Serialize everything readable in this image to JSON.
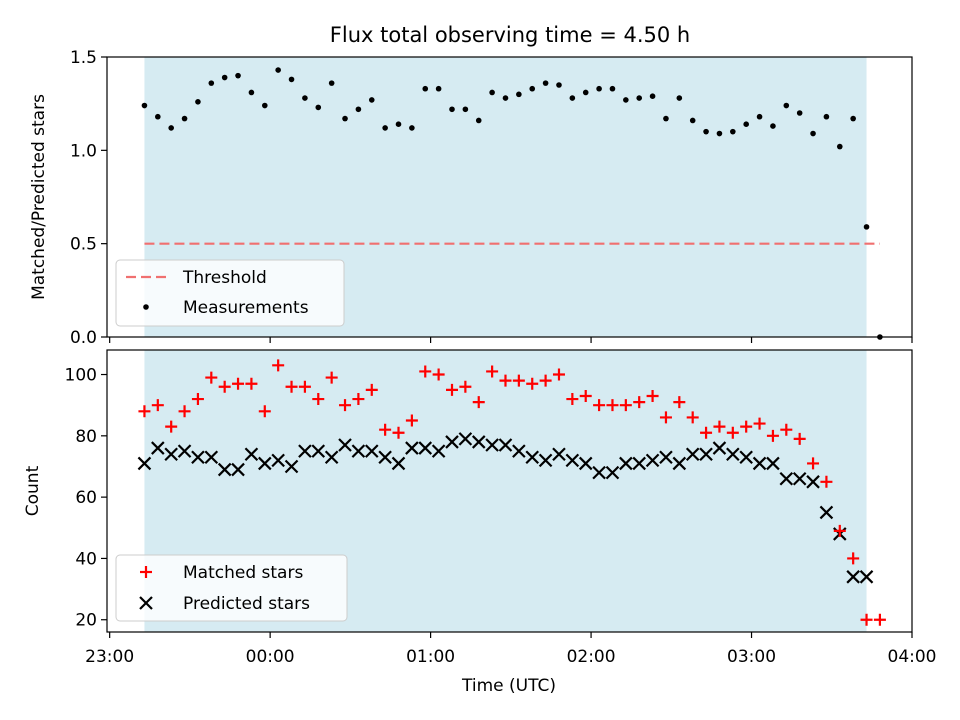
{
  "chart_data": [
    {
      "type": "scatter",
      "title": "Flux total observing time = 4.50 h",
      "ylabel": "Matched/Predicted stars",
      "ylim": [
        0,
        1.5
      ],
      "yticks": [
        "0.0",
        "0.5",
        "1.0",
        "1.5"
      ],
      "xlim": [
        "22:59",
        "04:00"
      ],
      "shaded_span": [
        "23:13",
        "03:43"
      ],
      "threshold": {
        "name": "Threshold",
        "value": 0.5,
        "x_range": [
          "23:13",
          "03:48"
        ],
        "color": "#f07070"
      },
      "legend": {
        "placement": "lower-left",
        "entries": [
          "Threshold",
          "Measurements"
        ]
      },
      "series": [
        {
          "name": "Measurements",
          "color": "#000000",
          "points": [
            [
              "23:13",
              1.24
            ],
            [
              "23:18",
              1.18
            ],
            [
              "23:23",
              1.12
            ],
            [
              "23:28",
              1.17
            ],
            [
              "23:33",
              1.26
            ],
            [
              "23:38",
              1.36
            ],
            [
              "23:43",
              1.39
            ],
            [
              "23:48",
              1.4
            ],
            [
              "23:53",
              1.31
            ],
            [
              "23:58",
              1.24
            ],
            [
              "00:03",
              1.43
            ],
            [
              "00:08",
              1.38
            ],
            [
              "00:13",
              1.28
            ],
            [
              "00:18",
              1.23
            ],
            [
              "00:23",
              1.36
            ],
            [
              "00:28",
              1.17
            ],
            [
              "00:33",
              1.22
            ],
            [
              "00:38",
              1.27
            ],
            [
              "00:43",
              1.12
            ],
            [
              "00:48",
              1.14
            ],
            [
              "00:53",
              1.12
            ],
            [
              "00:58",
              1.33
            ],
            [
              "01:03",
              1.33
            ],
            [
              "01:08",
              1.22
            ],
            [
              "01:13",
              1.22
            ],
            [
              "01:18",
              1.16
            ],
            [
              "01:23",
              1.31
            ],
            [
              "01:28",
              1.28
            ],
            [
              "01:33",
              1.3
            ],
            [
              "01:38",
              1.33
            ],
            [
              "01:43",
              1.36
            ],
            [
              "01:48",
              1.35
            ],
            [
              "01:53",
              1.28
            ],
            [
              "01:58",
              1.31
            ],
            [
              "02:03",
              1.33
            ],
            [
              "02:08",
              1.33
            ],
            [
              "02:13",
              1.27
            ],
            [
              "02:18",
              1.28
            ],
            [
              "02:23",
              1.29
            ],
            [
              "02:28",
              1.17
            ],
            [
              "02:33",
              1.28
            ],
            [
              "02:38",
              1.16
            ],
            [
              "02:43",
              1.1
            ],
            [
              "02:48",
              1.09
            ],
            [
              "02:53",
              1.1
            ],
            [
              "02:58",
              1.14
            ],
            [
              "03:03",
              1.18
            ],
            [
              "03:08",
              1.13
            ],
            [
              "03:13",
              1.24
            ],
            [
              "03:18",
              1.2
            ],
            [
              "03:23",
              1.09
            ],
            [
              "03:28",
              1.18
            ],
            [
              "03:33",
              1.02
            ],
            [
              "03:38",
              1.17
            ],
            [
              "03:43",
              0.59
            ],
            [
              "03:48",
              0.0
            ]
          ]
        }
      ]
    },
    {
      "type": "scatter",
      "xlabel": "Time (UTC)",
      "ylabel": "Count",
      "ylim": [
        16,
        108
      ],
      "yticks": [
        "20",
        "40",
        "60",
        "80",
        "100"
      ],
      "xlim": [
        "22:59",
        "04:00"
      ],
      "xticks": [
        "23:00",
        "00:00",
        "01:00",
        "02:00",
        "03:00",
        "04:00"
      ],
      "shaded_span": [
        "23:13",
        "03:43"
      ],
      "legend": {
        "placement": "lower-left",
        "entries": [
          "Matched stars",
          "Predicted stars"
        ]
      },
      "series": [
        {
          "name": "Matched stars",
          "marker": "plus",
          "color": "#ff0000",
          "points": [
            [
              "23:13",
              88
            ],
            [
              "23:18",
              90
            ],
            [
              "23:23",
              83
            ],
            [
              "23:28",
              88
            ],
            [
              "23:33",
              92
            ],
            [
              "23:38",
              99
            ],
            [
              "23:43",
              96
            ],
            [
              "23:48",
              97
            ],
            [
              "23:53",
              97
            ],
            [
              "23:58",
              88
            ],
            [
              "00:03",
              103
            ],
            [
              "00:08",
              96
            ],
            [
              "00:13",
              96
            ],
            [
              "00:18",
              92
            ],
            [
              "00:23",
              99
            ],
            [
              "00:28",
              90
            ],
            [
              "00:33",
              92
            ],
            [
              "00:38",
              95
            ],
            [
              "00:43",
              82
            ],
            [
              "00:48",
              81
            ],
            [
              "00:53",
              85
            ],
            [
              "00:58",
              101
            ],
            [
              "01:03",
              100
            ],
            [
              "01:08",
              95
            ],
            [
              "01:13",
              96
            ],
            [
              "01:18",
              91
            ],
            [
              "01:23",
              101
            ],
            [
              "01:28",
              98
            ],
            [
              "01:33",
              98
            ],
            [
              "01:38",
              97
            ],
            [
              "01:43",
              98
            ],
            [
              "01:48",
              100
            ],
            [
              "01:53",
              92
            ],
            [
              "01:58",
              93
            ],
            [
              "02:03",
              90
            ],
            [
              "02:08",
              90
            ],
            [
              "02:13",
              90
            ],
            [
              "02:18",
              91
            ],
            [
              "02:23",
              93
            ],
            [
              "02:28",
              86
            ],
            [
              "02:33",
              91
            ],
            [
              "02:38",
              86
            ],
            [
              "02:43",
              81
            ],
            [
              "02:48",
              83
            ],
            [
              "02:53",
              81
            ],
            [
              "02:58",
              83
            ],
            [
              "03:03",
              84
            ],
            [
              "03:08",
              80
            ],
            [
              "03:13",
              82
            ],
            [
              "03:18",
              79
            ],
            [
              "03:23",
              71
            ],
            [
              "03:28",
              65
            ],
            [
              "03:33",
              49
            ],
            [
              "03:38",
              40
            ],
            [
              "03:43",
              20
            ],
            [
              "03:48",
              20
            ]
          ]
        },
        {
          "name": "Predicted stars",
          "marker": "x",
          "color": "#000000",
          "points": [
            [
              "23:13",
              71
            ],
            [
              "23:18",
              76
            ],
            [
              "23:23",
              74
            ],
            [
              "23:28",
              75
            ],
            [
              "23:33",
              73
            ],
            [
              "23:38",
              73
            ],
            [
              "23:43",
              69
            ],
            [
              "23:48",
              69
            ],
            [
              "23:53",
              74
            ],
            [
              "23:58",
              71
            ],
            [
              "00:03",
              72
            ],
            [
              "00:08",
              70
            ],
            [
              "00:13",
              75
            ],
            [
              "00:18",
              75
            ],
            [
              "00:23",
              73
            ],
            [
              "00:28",
              77
            ],
            [
              "00:33",
              75
            ],
            [
              "00:38",
              75
            ],
            [
              "00:43",
              73
            ],
            [
              "00:48",
              71
            ],
            [
              "00:53",
              76
            ],
            [
              "00:58",
              76
            ],
            [
              "01:03",
              75
            ],
            [
              "01:08",
              78
            ],
            [
              "01:13",
              79
            ],
            [
              "01:18",
              78
            ],
            [
              "01:23",
              77
            ],
            [
              "01:28",
              77
            ],
            [
              "01:33",
              75
            ],
            [
              "01:38",
              73
            ],
            [
              "01:43",
              72
            ],
            [
              "01:48",
              74
            ],
            [
              "01:53",
              72
            ],
            [
              "01:58",
              71
            ],
            [
              "02:03",
              68
            ],
            [
              "02:08",
              68
            ],
            [
              "02:13",
              71
            ],
            [
              "02:18",
              71
            ],
            [
              "02:23",
              72
            ],
            [
              "02:28",
              73
            ],
            [
              "02:33",
              71
            ],
            [
              "02:38",
              74
            ],
            [
              "02:43",
              74
            ],
            [
              "02:48",
              76
            ],
            [
              "02:53",
              74
            ],
            [
              "02:58",
              73
            ],
            [
              "03:03",
              71
            ],
            [
              "03:08",
              71
            ],
            [
              "03:13",
              66
            ],
            [
              "03:18",
              66
            ],
            [
              "03:23",
              65
            ],
            [
              "03:28",
              55
            ],
            [
              "03:33",
              48
            ],
            [
              "03:38",
              34
            ],
            [
              "03:43",
              34
            ]
          ]
        }
      ]
    }
  ]
}
